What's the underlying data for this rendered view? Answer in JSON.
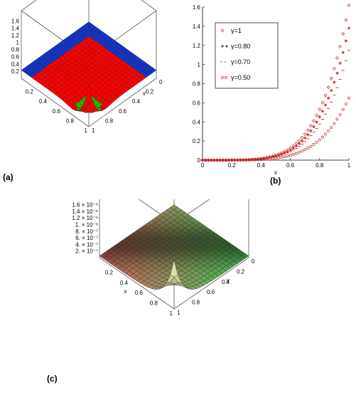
{
  "chart_data": [
    {
      "type": "surface3d",
      "panel_label": "(a)",
      "ztick_labels": [
        "0.2",
        "0.4",
        "0.6",
        "0.8",
        "1",
        "1.2",
        "1.4",
        "1.6"
      ],
      "x_label": "x",
      "xtick_labels": [
        "0",
        "0.2",
        "0.4",
        "0.6",
        "0.8",
        "1"
      ],
      "ytick_labels": [
        "0.2",
        "0.4",
        "0.6",
        "0.8",
        "1"
      ],
      "surface_colors": [
        "#ff0000",
        "#00cc00",
        "#1133cc",
        "#000000"
      ],
      "zlim": [
        0,
        1.6
      ]
    },
    {
      "type": "scatter",
      "panel_label": "(b)",
      "xlabel": "x",
      "xlim": [
        0,
        1
      ],
      "ylim": [
        0,
        1.6
      ],
      "xtick_labels": [
        "0",
        "0.2",
        "0.4",
        "0.6",
        "0.8",
        "1"
      ],
      "ytick_labels": [
        "0",
        "0.2",
        "0.4",
        "0.6",
        "0.8",
        "1",
        "1.2",
        "1.4",
        "1.6"
      ],
      "legend_position": "top-left",
      "color": "#cc2222",
      "series": [
        {
          "name": "γ=1",
          "marker": "diamond",
          "peak": 1.62
        },
        {
          "name": "γ=0.80",
          "marker": "asterisk",
          "peak": 1.38
        },
        {
          "name": "γ=0.70",
          "marker": "dash",
          "peak": 1.15
        },
        {
          "name": "γ=0.50",
          "marker": "circle",
          "peak": 0.65
        }
      ],
      "x": [
        0,
        0.02,
        0.04,
        0.06,
        0.08,
        0.1,
        0.12,
        0.14,
        0.16,
        0.18,
        0.2,
        0.22,
        0.24,
        0.26,
        0.28,
        0.3,
        0.32,
        0.34,
        0.36,
        0.38,
        0.4,
        0.42,
        0.44,
        0.46,
        0.48,
        0.5,
        0.52,
        0.54,
        0.56,
        0.58,
        0.6,
        0.62,
        0.64,
        0.66,
        0.68,
        0.7,
        0.72,
        0.74,
        0.76,
        0.78,
        0.8,
        0.82,
        0.84,
        0.86,
        0.88,
        0.9,
        0.92,
        0.94,
        0.96,
        0.98,
        1.0
      ]
    },
    {
      "type": "surface3d",
      "panel_label": "(c)",
      "ztick_labels": [
        "2. × 10⁻⁷",
        "4. × 10⁻⁷",
        "6. × 10⁻⁷",
        "8. × 10⁻⁷",
        "1. × 10⁻⁶",
        "1.2 × 10⁻⁶",
        "1.4 × 10⁻⁶",
        "1.6 × 10⁻⁶"
      ],
      "xtick_labels": [
        "0.2",
        "0.4",
        "0.6",
        "0.8",
        "1"
      ],
      "ytick_labels": [
        "0",
        "0.2",
        "0.4",
        "0.6",
        "0.8",
        "1"
      ],
      "x_label": "x",
      "y_label": "y",
      "zlim": [
        0,
        1.6e-06
      ]
    }
  ]
}
